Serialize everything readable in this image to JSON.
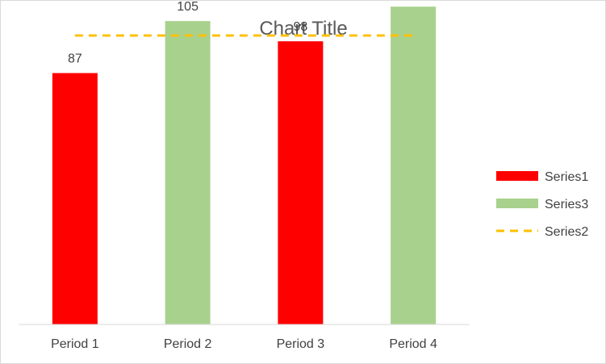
{
  "chart_data": {
    "type": "bar",
    "title": "Chart Title",
    "categories": [
      "Period 1",
      "Period 2",
      "Period 3",
      "Period 4"
    ],
    "series": [
      {
        "name": "Series1",
        "kind": "bar",
        "color": "#ff0000",
        "values": [
          87,
          null,
          98,
          null
        ]
      },
      {
        "name": "Series3",
        "kind": "bar",
        "color": "#a9d18e",
        "values": [
          null,
          105,
          null,
          110
        ]
      },
      {
        "name": "Series2",
        "kind": "line",
        "style": "dashed",
        "color": "#ffc000",
        "values": [
          100,
          100,
          100,
          100
        ]
      }
    ],
    "data_labels": [
      "87",
      "105",
      "98",
      "110"
    ],
    "ylim": [
      0,
      120
    ],
    "grid": false,
    "legend_position": "right",
    "legend_order": [
      "Series1",
      "Series3",
      "Series2"
    ],
    "xlabel": "",
    "ylabel": ""
  }
}
